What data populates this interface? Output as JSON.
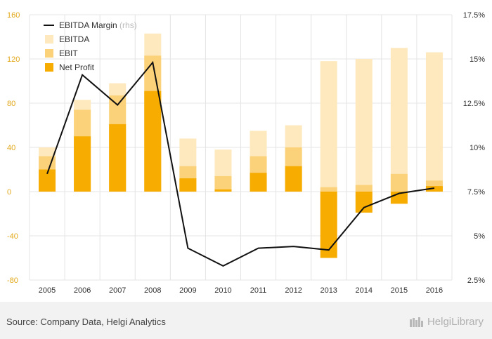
{
  "chart_data": {
    "type": "bar",
    "categories": [
      "2005",
      "2006",
      "2007",
      "2008",
      "2009",
      "2010",
      "2011",
      "2012",
      "2013",
      "2014",
      "2015",
      "2016"
    ],
    "series": [
      {
        "name": "EBITDA",
        "kind": "bar",
        "axis": "left",
        "color": "#fde9bd",
        "values": [
          40,
          83,
          98,
          143,
          48,
          38,
          55,
          60,
          118,
          120,
          130,
          126
        ]
      },
      {
        "name": "EBIT",
        "kind": "bar",
        "axis": "left",
        "color": "#fbd27a",
        "values": [
          32,
          74,
          87,
          123,
          23,
          14,
          32,
          40,
          4,
          6,
          16,
          10
        ]
      },
      {
        "name": "Net Profit",
        "kind": "bar",
        "axis": "left",
        "color": "#f6ac00",
        "values": [
          20,
          50,
          61,
          91,
          12,
          2,
          17,
          23,
          -60,
          -19,
          -11,
          5
        ]
      },
      {
        "name": "EBITDA Margin",
        "note": "(rhs)",
        "kind": "line",
        "axis": "right",
        "color": "#111111",
        "values": [
          8.5,
          14.1,
          12.4,
          14.8,
          4.3,
          3.3,
          4.3,
          4.4,
          4.2,
          6.6,
          7.4,
          7.7
        ]
      }
    ],
    "left_axis": {
      "ylim": [
        -80,
        160
      ],
      "ticks": [
        "-80",
        "-40",
        "0",
        "40",
        "80",
        "120",
        "160"
      ],
      "tick_values": [
        -80,
        -40,
        0,
        40,
        80,
        120,
        160
      ]
    },
    "right_axis": {
      "ylim": [
        2.5,
        17.5
      ],
      "ticks": [
        "2.5%",
        "5%",
        "7.5%",
        "10%",
        "12.5%",
        "15%",
        "17.5%"
      ],
      "tick_values": [
        2.5,
        5,
        7.5,
        10,
        12.5,
        15,
        17.5
      ]
    },
    "grid": true,
    "legend_position": "top-left"
  },
  "footer": {
    "source": "Source: Company Data, Helgi Analytics",
    "brand": "HelgiLibrary"
  }
}
